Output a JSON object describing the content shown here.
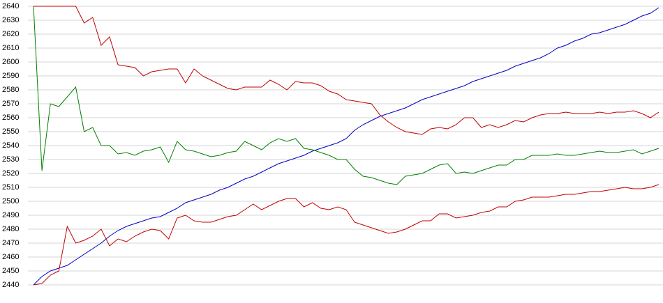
{
  "chart_data": {
    "type": "line",
    "ylim": [
      2440,
      2640
    ],
    "yticks": [
      2440,
      2450,
      2460,
      2470,
      2480,
      2490,
      2500,
      2510,
      2520,
      2530,
      2540,
      2550,
      2560,
      2570,
      2580,
      2590,
      2600,
      2610,
      2620,
      2630,
      2640
    ],
    "grid": true,
    "series": [
      {
        "color": "#0000c0",
        "values": [
          2440,
          2446,
          2450,
          2452,
          2454,
          2458,
          2462,
          2466,
          2470,
          2475,
          2479,
          2482,
          2484,
          2486,
          2488,
          2489,
          2492,
          2495,
          2499,
          2501,
          2503,
          2505,
          2508,
          2510,
          2513,
          2516,
          2518,
          2521,
          2524,
          2527,
          2529,
          2531,
          2533,
          2536,
          2538,
          2540,
          2542,
          2545,
          2551,
          2555,
          2558,
          2561,
          2563,
          2565,
          2567,
          2570,
          2573,
          2575,
          2577,
          2579,
          2581,
          2583,
          2586,
          2588,
          2590,
          2592,
          2594,
          2597,
          2599,
          2601,
          2603,
          2606,
          2610,
          2612,
          2615,
          2617,
          2620,
          2621,
          2623,
          2625,
          2627,
          2630,
          2633,
          2635,
          2639
        ]
      },
      {
        "color": "#008000",
        "values": [
          2640,
          2522,
          2570,
          2568,
          2575,
          2582,
          2550,
          2553,
          2540,
          2540,
          2534,
          2535,
          2533,
          2536,
          2537,
          2539,
          2528,
          2543,
          2537,
          2536,
          2534,
          2532,
          2533,
          2535,
          2536,
          2543,
          2540,
          2537,
          2542,
          2545,
          2543,
          2545,
          2538,
          2537,
          2535,
          2533,
          2530,
          2530,
          2523,
          2518,
          2517,
          2515,
          2513,
          2512,
          2518,
          2519,
          2520,
          2523,
          2526,
          2527,
          2520,
          2521,
          2520,
          2522,
          2524,
          2526,
          2526,
          2530,
          2530,
          2533,
          2533,
          2533,
          2534,
          2533,
          2533,
          2534,
          2535,
          2536,
          2535,
          2535,
          2536,
          2537,
          2534,
          2536,
          2538
        ]
      },
      {
        "color": "#c00000",
        "values": [
          2640,
          2640,
          2640,
          2640,
          2640,
          2640,
          2628,
          2632,
          2612,
          2618,
          2598,
          2597,
          2596,
          2590,
          2593,
          2594,
          2595,
          2595,
          2585,
          2595,
          2590,
          2587,
          2584,
          2581,
          2580,
          2582,
          2582,
          2582,
          2587,
          2584,
          2580,
          2586,
          2585,
          2585,
          2583,
          2579,
          2577,
          2573,
          2572,
          2571,
          2570,
          2562,
          2557,
          2553,
          2550,
          2549,
          2548,
          2552,
          2553,
          2552,
          2555,
          2560,
          2560,
          2553,
          2555,
          2553,
          2555,
          2558,
          2557,
          2560,
          2562,
          2563,
          2563,
          2564,
          2563,
          2563,
          2563,
          2564,
          2563,
          2564,
          2564,
          2565,
          2563,
          2560,
          2564
        ]
      },
      {
        "color": "#c00000",
        "values": [
          2440,
          2441,
          2447,
          2450,
          2482,
          2470,
          2472,
          2475,
          2480,
          2468,
          2473,
          2471,
          2475,
          2478,
          2480,
          2479,
          2473,
          2488,
          2490,
          2486,
          2485,
          2485,
          2487,
          2489,
          2490,
          2494,
          2498,
          2494,
          2497,
          2500,
          2502,
          2502,
          2496,
          2499,
          2495,
          2494,
          2496,
          2494,
          2485,
          2483,
          2481,
          2479,
          2477,
          2478,
          2480,
          2483,
          2486,
          2486,
          2491,
          2491,
          2488,
          2489,
          2490,
          2492,
          2493,
          2496,
          2496,
          2500,
          2501,
          2503,
          2503,
          2503,
          2504,
          2505,
          2505,
          2506,
          2507,
          2507,
          2508,
          2509,
          2510,
          2509,
          2509,
          2510,
          2512
        ]
      }
    ]
  }
}
